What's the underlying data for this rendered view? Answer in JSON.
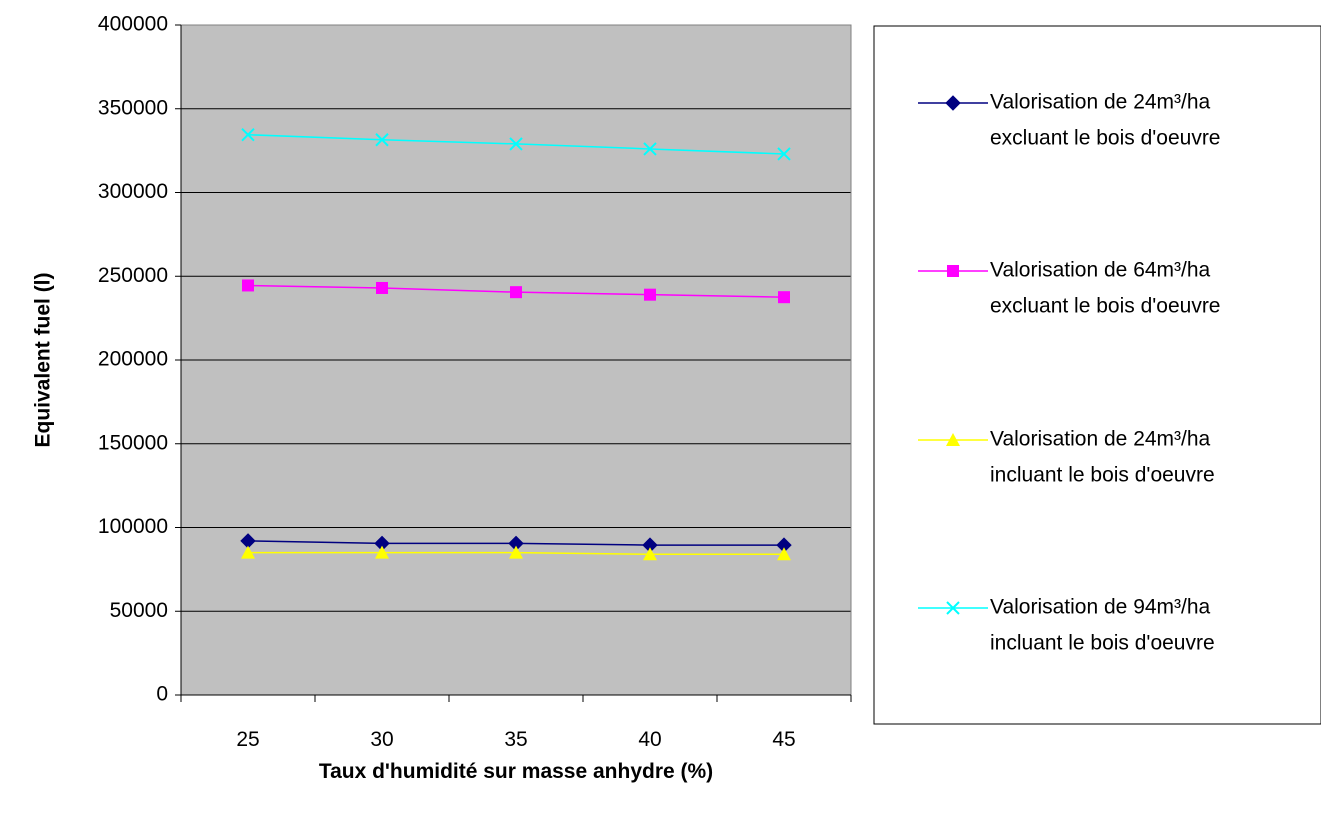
{
  "chart_data": {
    "type": "line",
    "title": "",
    "xlabel": "Taux d'humidité sur masse anhydre (%)",
    "ylabel": "Equivalent fuel (l)",
    "categories": [
      "25",
      "30",
      "35",
      "40",
      "45"
    ],
    "ylim": [
      0,
      400000
    ],
    "y_ticks": [
      "0",
      "50000",
      "100000",
      "150000",
      "200000",
      "250000",
      "300000",
      "350000",
      "400000"
    ],
    "grid": "horizontal",
    "plot_background": "#C0C0C0",
    "legend_position": "right",
    "series": [
      {
        "name_line1": "Valorisation de 24m³/ha",
        "name_line2": "excluant le bois d'oeuvre",
        "color": "#000080",
        "marker": "diamond",
        "values": [
          92000,
          90500,
          90500,
          89500,
          89500
        ]
      },
      {
        "name_line1": "Valorisation de 64m³/ha",
        "name_line2": "excluant le bois d'oeuvre",
        "color": "#FF00FF",
        "marker": "square",
        "values": [
          244500,
          243000,
          240500,
          239000,
          237500
        ]
      },
      {
        "name_line1": "Valorisation de 24m³/ha",
        "name_line2": "incluant le bois d'oeuvre",
        "color": "#FFFF00",
        "marker": "triangle",
        "values": [
          85000,
          85000,
          85000,
          84000,
          84000
        ]
      },
      {
        "name_line1": "Valorisation de 94m³/ha",
        "name_line2": "incluant le bois d'oeuvre",
        "color": "#00FFFF",
        "marker": "x",
        "values": [
          334500,
          331500,
          329000,
          326000,
          323000
        ]
      }
    ]
  }
}
